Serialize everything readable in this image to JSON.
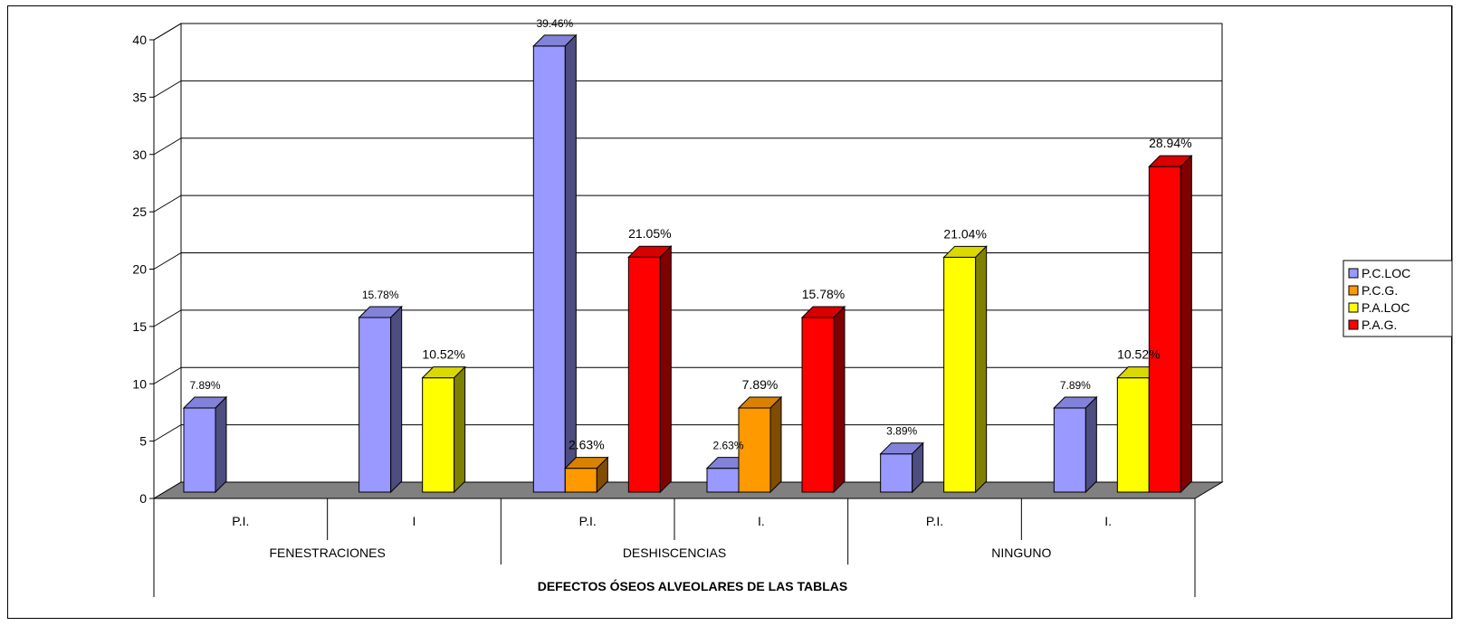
{
  "chart_data": {
    "type": "bar",
    "title": "",
    "xlabel": "DEFECTOS ÓSEOS ALVEOLARES DE LAS TABLAS",
    "ylabel": "",
    "ylim": [
      0,
      40
    ],
    "yticks": [
      0,
      5,
      10,
      15,
      20,
      25,
      30,
      35,
      40
    ],
    "groups": [
      "FENESTRACIONES",
      "DESHISCENCIAS",
      "NINGUNO"
    ],
    "categories": [
      "P.I.",
      "I",
      "P.I.",
      "I.",
      "P.I.",
      "I."
    ],
    "series": [
      {
        "name": "P.C.LOC",
        "color": "#9999ff",
        "values": [
          7.89,
          15.78,
          39.46,
          2.63,
          3.89,
          7.89
        ],
        "labels": [
          "7.89%",
          "15.78%",
          "39.46%",
          "2.63%",
          "3.89%",
          "7.89%"
        ]
      },
      {
        "name": "P.C.G.",
        "color": "#ff9900",
        "values": [
          null,
          null,
          2.63,
          7.89,
          null,
          null
        ],
        "labels": [
          "",
          "",
          "2.63%",
          "7.89%",
          "",
          ""
        ]
      },
      {
        "name": "P.A.LOC",
        "color": "#ffff00",
        "values": [
          null,
          10.52,
          null,
          null,
          21.04,
          10.52
        ],
        "labels": [
          "",
          "10.52%",
          "",
          "",
          "21.04%",
          "10.52%"
        ]
      },
      {
        "name": "P.A.G.",
        "color": "#ff0000",
        "values": [
          null,
          null,
          21.05,
          15.78,
          null,
          28.94
        ],
        "labels": [
          "",
          "",
          "21.05%",
          "15.78%",
          "",
          "28.94%"
        ]
      }
    ],
    "grid": true,
    "legend": "right"
  }
}
